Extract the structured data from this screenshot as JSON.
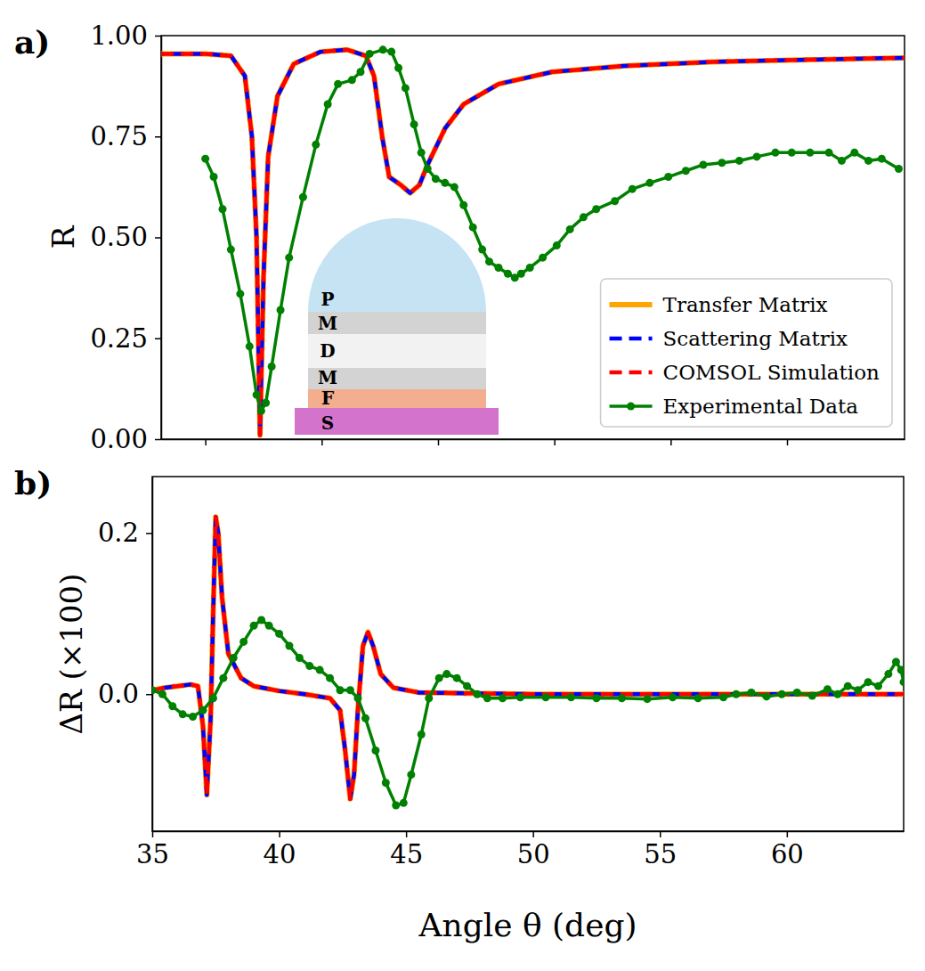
{
  "chart_data": [
    {
      "type": "line",
      "panel_label": "a)",
      "ylabel": "R",
      "xlim": [
        33.1,
        65.05
      ],
      "ylim": [
        0,
        1
      ],
      "xticks": [
        35,
        40,
        45,
        50,
        55,
        60
      ],
      "yticks": [
        {
          "value": 0,
          "label": "0.00"
        },
        {
          "value": 0.25,
          "label": "0.25"
        },
        {
          "value": 0.5,
          "label": "0.50"
        },
        {
          "value": 0.75,
          "label": "0.75"
        },
        {
          "value": 1,
          "label": "1.00"
        }
      ],
      "tick_labels": "y",
      "grid": false,
      "legend": "lower right",
      "annotations": [
        "P",
        "M",
        "D",
        "M",
        "F",
        "S"
      ],
      "series": [
        {
          "name": "Transfer Matrix",
          "color": "#ffa500",
          "line_style": "solid",
          "marker": "none",
          "x": [
            33.1,
            35.0,
            36.1,
            36.7,
            37.0,
            37.2,
            37.35,
            37.5,
            37.7,
            38.1,
            38.8,
            39.95,
            41.1,
            41.9,
            42.25,
            42.6,
            42.9,
            43.4,
            43.8,
            44.2,
            44.55,
            45.3,
            46.1,
            47.6,
            49.9,
            53.0,
            56.8,
            60.6,
            65.05
          ],
          "values": [
            0.955,
            0.955,
            0.95,
            0.9,
            0.75,
            0.5,
            0.01,
            0.4,
            0.7,
            0.85,
            0.93,
            0.96,
            0.965,
            0.95,
            0.9,
            0.75,
            0.65,
            0.63,
            0.61,
            0.63,
            0.68,
            0.77,
            0.83,
            0.88,
            0.91,
            0.925,
            0.935,
            0.94,
            0.945
          ]
        },
        {
          "name": "Scattering Matrix",
          "color": "#0000ff",
          "line_style": "dashed",
          "marker": "none",
          "x": [
            33.1,
            35.0,
            36.1,
            36.7,
            37.0,
            37.2,
            37.35,
            37.5,
            37.7,
            38.1,
            38.8,
            39.95,
            41.1,
            41.9,
            42.25,
            42.6,
            42.9,
            43.4,
            43.8,
            44.2,
            44.55,
            45.3,
            46.1,
            47.6,
            49.9,
            53.0,
            56.8,
            60.6,
            65.05
          ],
          "values": [
            0.955,
            0.955,
            0.95,
            0.9,
            0.75,
            0.5,
            0.01,
            0.4,
            0.7,
            0.85,
            0.93,
            0.96,
            0.965,
            0.95,
            0.9,
            0.75,
            0.65,
            0.63,
            0.61,
            0.63,
            0.68,
            0.77,
            0.83,
            0.88,
            0.91,
            0.925,
            0.935,
            0.94,
            0.945
          ]
        },
        {
          "name": "COMSOL Simulation",
          "color": "#ff0000",
          "line_style": "dashed",
          "marker": "none",
          "x": [
            33.1,
            35.0,
            36.1,
            36.7,
            37.0,
            37.2,
            37.35,
            37.5,
            37.7,
            38.1,
            38.8,
            39.95,
            41.1,
            41.9,
            42.25,
            42.6,
            42.9,
            43.4,
            43.8,
            44.2,
            44.55,
            45.3,
            46.1,
            47.6,
            49.9,
            53.0,
            56.8,
            60.6,
            65.05
          ],
          "values": [
            0.955,
            0.955,
            0.95,
            0.9,
            0.75,
            0.5,
            0.01,
            0.4,
            0.7,
            0.85,
            0.93,
            0.96,
            0.965,
            0.95,
            0.9,
            0.75,
            0.65,
            0.63,
            0.61,
            0.63,
            0.68,
            0.77,
            0.83,
            0.88,
            0.91,
            0.925,
            0.935,
            0.94,
            0.945
          ]
        },
        {
          "name": "Experimental Data",
          "color": "#008000",
          "line_style": "solid",
          "marker": "circle",
          "x": [
            35.0,
            35.36,
            35.74,
            36.1,
            36.5,
            36.9,
            37.2,
            37.4,
            37.6,
            37.85,
            38.23,
            38.6,
            39.2,
            39.75,
            40.26,
            40.7,
            41.3,
            41.67,
            42.06,
            42.63,
            43.0,
            43.3,
            43.6,
            43.97,
            44.28,
            44.55,
            44.9,
            45.3,
            45.7,
            46.1,
            46.5,
            46.9,
            47.2,
            47.6,
            48.0,
            48.3,
            48.57,
            48.95,
            49.5,
            50.1,
            50.67,
            51.25,
            51.8,
            52.6,
            53.35,
            54.1,
            54.9,
            55.65,
            56.4,
            57.2,
            57.95,
            58.7,
            59.5,
            60.2,
            60.99,
            61.8,
            62.35,
            62.9,
            63.5,
            64.07,
            64.8
          ],
          "values": [
            0.695,
            0.65,
            0.57,
            0.47,
            0.36,
            0.23,
            0.11,
            0.07,
            0.09,
            0.18,
            0.32,
            0.45,
            0.6,
            0.73,
            0.83,
            0.88,
            0.89,
            0.91,
            0.955,
            0.965,
            0.96,
            0.92,
            0.87,
            0.78,
            0.71,
            0.67,
            0.645,
            0.635,
            0.625,
            0.58,
            0.525,
            0.47,
            0.44,
            0.425,
            0.41,
            0.4,
            0.41,
            0.425,
            0.45,
            0.48,
            0.52,
            0.55,
            0.57,
            0.59,
            0.62,
            0.635,
            0.65,
            0.665,
            0.68,
            0.685,
            0.69,
            0.7,
            0.71,
            0.71,
            0.71,
            0.71,
            0.69,
            0.71,
            0.69,
            0.695,
            0.67
          ]
        }
      ]
    },
    {
      "type": "line",
      "panel_label": "b)",
      "ylabel": "ΔR (×100)",
      "xlabel": "Angle θ (deg)",
      "xlim": [
        35,
        64.6
      ],
      "ylim": [
        -0.17,
        0.27
      ],
      "xticks": [
        35,
        40,
        45,
        50,
        55,
        60
      ],
      "yticks": [
        {
          "value": 0,
          "label": "0.0"
        },
        {
          "value": 0.2,
          "label": "0.2"
        }
      ],
      "grid": false,
      "series": [
        {
          "color": "#ffa500",
          "line_style": "solid",
          "marker": "none",
          "x": [
            35.0,
            35.5,
            36.0,
            36.5,
            36.8,
            37.0,
            37.15,
            37.3,
            37.4,
            37.5,
            37.6,
            37.75,
            38.0,
            38.5,
            39.0,
            40.0,
            41.0,
            42.0,
            42.4,
            42.6,
            42.8,
            42.95,
            43.1,
            43.3,
            43.5,
            43.7,
            44.0,
            44.5,
            45.5,
            50.0,
            64.6
          ],
          "values": [
            0.005,
            0.008,
            0.01,
            0.012,
            0.01,
            -0.04,
            -0.125,
            -0.03,
            0.1,
            0.22,
            0.2,
            0.12,
            0.05,
            0.02,
            0.01,
            0.004,
            0,
            -0.005,
            -0.02,
            -0.07,
            -0.13,
            -0.1,
            -0.02,
            0.06,
            0.077,
            0.06,
            0.025,
            0.008,
            0.002,
            0,
            0
          ]
        },
        {
          "color": "#0000ff",
          "line_style": "dashed",
          "marker": "none",
          "x": [
            35.0,
            35.5,
            36.0,
            36.5,
            36.8,
            37.0,
            37.15,
            37.3,
            37.4,
            37.5,
            37.6,
            37.75,
            38.0,
            38.5,
            39.0,
            40.0,
            41.0,
            42.0,
            42.4,
            42.6,
            42.8,
            42.95,
            43.1,
            43.3,
            43.5,
            43.7,
            44.0,
            44.5,
            45.5,
            50.0,
            64.6
          ],
          "values": [
            0.005,
            0.008,
            0.01,
            0.012,
            0.01,
            -0.04,
            -0.125,
            -0.03,
            0.1,
            0.22,
            0.2,
            0.12,
            0.05,
            0.02,
            0.01,
            0.004,
            0,
            -0.005,
            -0.02,
            -0.07,
            -0.13,
            -0.1,
            -0.02,
            0.06,
            0.077,
            0.06,
            0.025,
            0.008,
            0.002,
            0,
            0
          ]
        },
        {
          "color": "#ff0000",
          "line_style": "dashed",
          "marker": "none",
          "x": [
            35.0,
            35.5,
            36.0,
            36.5,
            36.8,
            37.0,
            37.15,
            37.3,
            37.4,
            37.5,
            37.6,
            37.75,
            38.0,
            38.5,
            39.0,
            40.0,
            41.0,
            42.0,
            42.4,
            42.6,
            42.8,
            42.95,
            43.1,
            43.3,
            43.5,
            43.7,
            44.0,
            44.5,
            45.5,
            50.0,
            64.6
          ],
          "values": [
            0.005,
            0.008,
            0.01,
            0.012,
            0.01,
            -0.04,
            -0.125,
            -0.03,
            0.1,
            0.22,
            0.2,
            0.12,
            0.05,
            0.02,
            0.01,
            0.004,
            0,
            -0.005,
            -0.02,
            -0.07,
            -0.13,
            -0.1,
            -0.02,
            0.06,
            0.077,
            0.06,
            0.025,
            0.008,
            0.002,
            0,
            0
          ]
        },
        {
          "color": "#008000",
          "line_style": "solid",
          "marker": "circle",
          "x": [
            35.0,
            35.4,
            35.8,
            36.2,
            36.6,
            37.0,
            37.4,
            37.8,
            38.2,
            38.6,
            39.0,
            39.3,
            39.6,
            40.0,
            40.4,
            40.8,
            41.2,
            41.6,
            42.0,
            42.4,
            42.8,
            43.1,
            43.4,
            43.8,
            44.2,
            44.6,
            44.9,
            45.2,
            45.6,
            45.9,
            46.3,
            46.6,
            47.0,
            47.4,
            47.8,
            48.2,
            48.8,
            49.5,
            50.5,
            51.5,
            52.5,
            53.5,
            54.5,
            55.5,
            56.5,
            57.5,
            58.0,
            58.6,
            59.2,
            59.8,
            60.4,
            61.0,
            61.6,
            62.0,
            62.4,
            62.8,
            63.2,
            63.6,
            64.0,
            64.3,
            64.5,
            64.6
          ],
          "values": [
            0.005,
            0,
            -0.015,
            -0.025,
            -0.028,
            -0.02,
            -0.005,
            0.02,
            0.045,
            0.065,
            0.085,
            0.092,
            0.085,
            0.075,
            0.06,
            0.045,
            0.035,
            0.03,
            0.02,
            0.005,
            0.005,
            -0.005,
            -0.03,
            -0.07,
            -0.11,
            -0.138,
            -0.135,
            -0.1,
            -0.05,
            -0.005,
            0.02,
            0.025,
            0.02,
            0.01,
            0,
            -0.005,
            -0.005,
            -0.004,
            -0.004,
            -0.004,
            -0.005,
            -0.005,
            -0.006,
            -0.004,
            -0.005,
            -0.004,
            0,
            0.002,
            -0.003,
            0,
            0.002,
            -0.002,
            0.006,
            0,
            0.01,
            0.005,
            0.015,
            0.01,
            0.025,
            0.04,
            0.03,
            0.015
          ]
        }
      ]
    }
  ]
}
